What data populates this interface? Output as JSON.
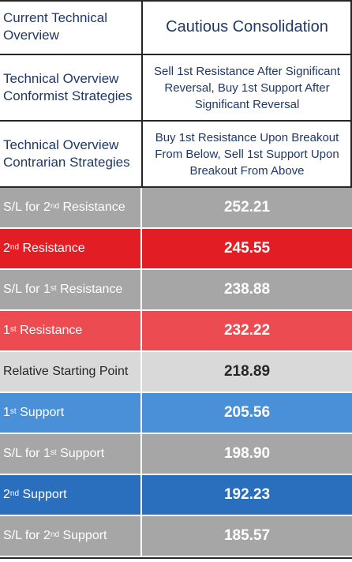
{
  "header": {
    "overview_label": "Current Technical Overview",
    "overview_value": "Cautious Consolidation",
    "conformist_label": "Technical Overview Conformist Strategies",
    "conformist_value": "Sell 1st Resistance After Significant Reversal, Buy 1st Support After Significant Reversal",
    "contrarian_label": "Technical Overview Contrarian Strategies",
    "contrarian_value": "Buy 1st Resistance Upon Breakout From Below, Sell 1st Support Upon Breakout From Above"
  },
  "levels": [
    {
      "pre": "S/L for 2",
      "sup": "nd",
      "post": " Resistance",
      "value": "252.21",
      "style": "grey"
    },
    {
      "pre": "2",
      "sup": "nd",
      "post": " Resistance",
      "value": "245.55",
      "style": "darkred"
    },
    {
      "pre": "S/L for 1",
      "sup": "st",
      "post": " Resistance",
      "value": "238.88",
      "style": "grey"
    },
    {
      "pre": "1",
      "sup": "st",
      "post": " Resistance",
      "value": "232.22",
      "style": "lightred"
    },
    {
      "pre": "Relative Starting Point",
      "sup": "",
      "post": "",
      "value": "218.89",
      "style": "neutral"
    },
    {
      "pre": "1",
      "sup": "st",
      "post": " Support",
      "value": "205.56",
      "style": "lightblue"
    },
    {
      "pre": "S/L for 1",
      "sup": "st",
      "post": " Support",
      "value": "198.90",
      "style": "grey"
    },
    {
      "pre": "2",
      "sup": "nd",
      "post": " Support",
      "value": "192.23",
      "style": "darkblue"
    },
    {
      "pre": "S/L for 2",
      "sup": "nd",
      "post": " Support",
      "value": "185.57",
      "style": "grey"
    }
  ],
  "colors": {
    "header_text": "#1f3864",
    "grey": "#a6a6a6",
    "dark_red": "#e31d24",
    "light_red": "#ed4b52",
    "neutral": "#d9d9d9",
    "light_blue": "#4a90d9",
    "dark_blue": "#2a6fbd"
  }
}
